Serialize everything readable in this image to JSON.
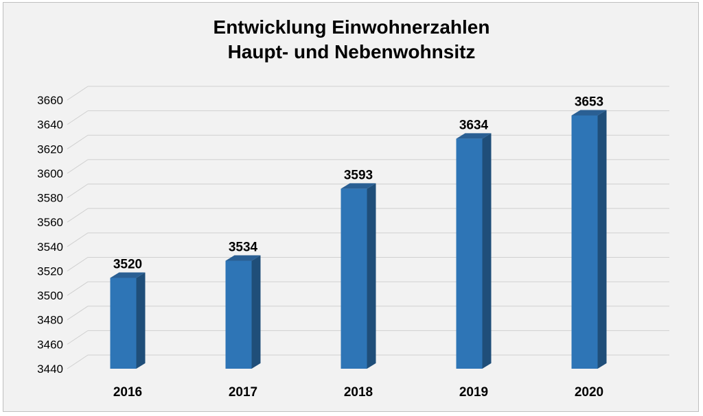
{
  "chart_data": {
    "type": "bar",
    "title": "Entwicklung Einwohnerzahlen",
    "subtitle": "Haupt- und Nebenwohnsitz",
    "categories": [
      "2016",
      "2017",
      "2018",
      "2019",
      "2020"
    ],
    "values": [
      3520,
      3534,
      3593,
      3634,
      3653
    ],
    "data_labels": [
      "3520",
      "3534",
      "3593",
      "3634",
      "3653"
    ],
    "ylim": [
      3440,
      3660
    ],
    "yticks": [
      3440,
      3460,
      3480,
      3500,
      3520,
      3540,
      3560,
      3580,
      3600,
      3620,
      3640,
      3660
    ],
    "ytick_labels": [
      "3440",
      "3460",
      "3480",
      "3500",
      "3520",
      "3540",
      "3560",
      "3580",
      "3600",
      "3620",
      "3640",
      "3660"
    ],
    "grid": true,
    "legend": "none",
    "bar_color": "#2e75b6",
    "bar_side_color": "#1f4e79",
    "bar_top_color": "#2a5f93",
    "background_color": "#f2f2f2"
  }
}
